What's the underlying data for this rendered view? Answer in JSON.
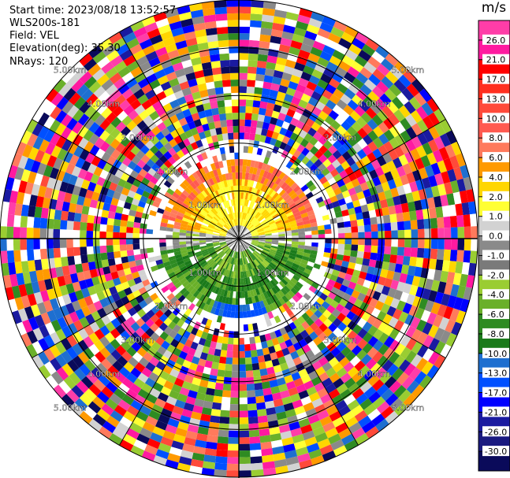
{
  "header": {
    "start_time": "Start time: 2023/08/18 13:52:57",
    "instrument": "WLS200s-181",
    "field": "Field: VEL",
    "elevation": "Elevation(deg): 35.30",
    "nrays": "NRays: 120"
  },
  "colorbar": {
    "unit": "m/s",
    "ticks": [
      "26.0",
      "21.0",
      "17.0",
      "13.0",
      "10.0",
      "8.0",
      "6.0",
      "4.0",
      "2.0",
      "1.0",
      "0.0",
      "-1.0",
      "-2.0",
      "-4.0",
      "-6.0",
      "-8.0",
      "-10.0",
      "-13.0",
      "-17.0",
      "-21.0",
      "-26.0",
      "-30.0"
    ],
    "colors": [
      "#ff3da8",
      "#ff1aa0",
      "#ff0000",
      "#ff2f1f",
      "#ff4a3a",
      "#ff5a50",
      "#ff7a5c",
      "#ff9a00",
      "#ffd600",
      "#ffff33",
      "#d2d2d2",
      "#8a8a8a",
      "#7a7a7a",
      "#9acd32",
      "#6ab02a",
      "#2e8b22",
      "#1a7a1a",
      "#1e6fd0",
      "#0050ff",
      "#0000ff",
      "#1a1aa0",
      "#1a1a80",
      "#0a0a5a"
    ]
  },
  "chart_data": {
    "type": "heatmap",
    "projection": "polar PPI",
    "field": "VEL",
    "elevation_deg": 35.3,
    "n_rays": 120,
    "range_rings_km": [
      1.0,
      2.0,
      3.0,
      4.0,
      5.0
    ],
    "range_ring_labels": [
      "1.00km",
      "2.00km",
      "3.00km",
      "4.00km",
      "5.00km"
    ],
    "spoke_angles_deg": [
      0,
      30,
      60,
      90,
      120,
      150,
      180,
      210,
      240,
      270,
      300,
      330
    ],
    "value_range_m_s": [
      -30.0,
      26.0
    ],
    "pattern": "near range (< ~1.6 km): positive velocities (yellow/orange/red) to the north, negative (green) to the south, near-zero (gray) along the east-west axis and center; beyond ~2 km: noise spanning the full color range"
  }
}
